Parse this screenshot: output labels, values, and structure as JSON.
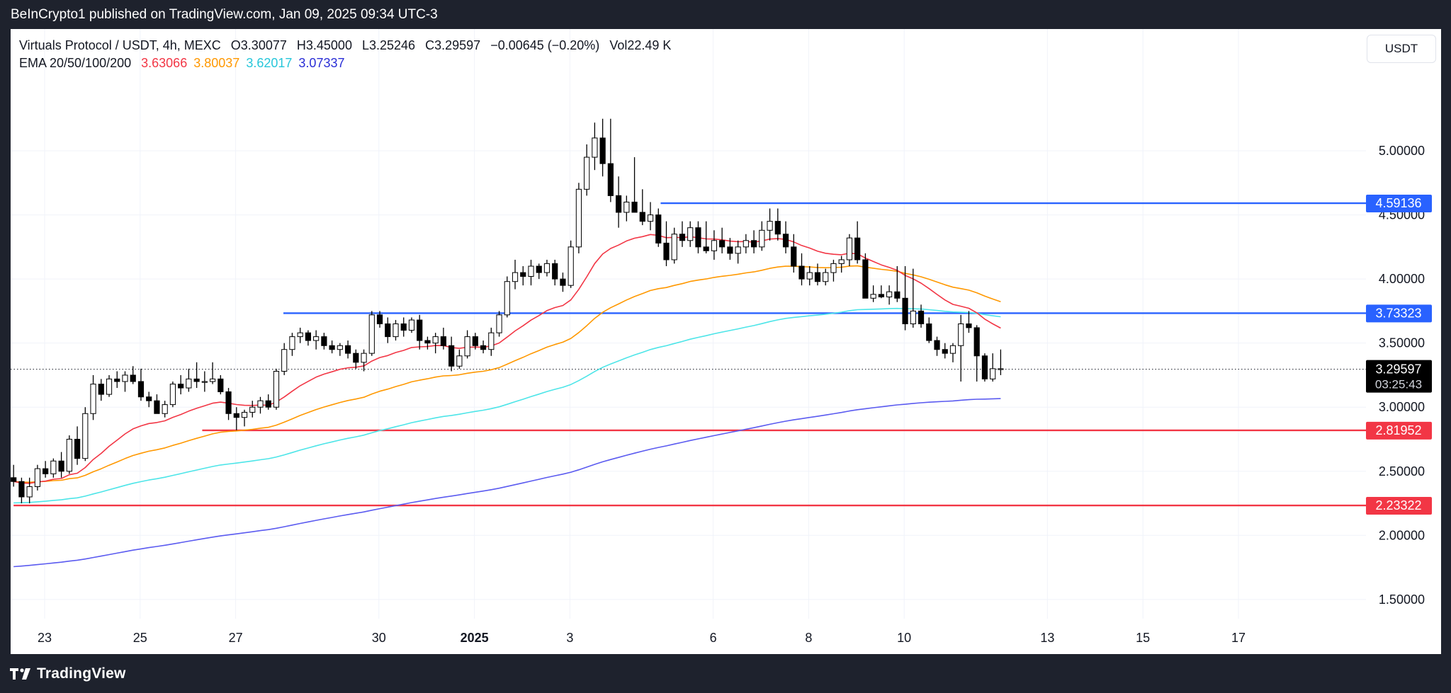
{
  "header": {
    "published": "BeInCrypto1 published on TradingView.com, Jan 09, 2025 09:34 UTC-3"
  },
  "legend": {
    "symbol": "Virtuals Protocol / USDT, 4h, MEXC",
    "ohlc": {
      "o_label": "O",
      "o": "3.30077",
      "h_label": "H",
      "h": "3.45000",
      "l_label": "L",
      "l": "3.25246",
      "c_label": "C",
      "c": "3.29597",
      "change": "−0.00645 (−0.20%)"
    },
    "vol_label": "Vol",
    "vol": "22.49 K",
    "ema_label": "EMA 20/50/100/200",
    "ema_values": [
      "3.63066",
      "3.80037",
      "3.62017",
      "3.07337"
    ]
  },
  "currency_button": "USDT",
  "footer": {
    "brand": "TradingView"
  },
  "colors": {
    "ema20": "#f23645",
    "ema50": "#ff9800",
    "ema100": "#4de5e8",
    "ema200": "#5b5bf0",
    "resistance": "#2962ff",
    "support": "#f23645",
    "bull": "#ffffff",
    "bear": "#000000",
    "panel": "#ffffff",
    "frame": "#1e222d"
  },
  "chart_data": {
    "type": "candlestick",
    "interval": "4h",
    "ylim": [
      1.35,
      5.95
    ],
    "y_ticks": [
      "5.00000",
      "4.50000",
      "4.00000",
      "3.50000",
      "3.00000",
      "2.50000",
      "2.00000",
      "1.50000"
    ],
    "x_ticks": [
      {
        "label": "23",
        "day": 23
      },
      {
        "label": "25",
        "day": 25
      },
      {
        "label": "27",
        "day": 27
      },
      {
        "label": "30",
        "day": 30
      },
      {
        "label": "2025",
        "day": 32,
        "bold": true
      },
      {
        "label": "3",
        "day": 34
      },
      {
        "label": "6",
        "day": 37
      },
      {
        "label": "8",
        "day": 39
      },
      {
        "label": "10",
        "day": 41
      },
      {
        "label": "13",
        "day": 44
      },
      {
        "label": "15",
        "day": 46
      },
      {
        "label": "17",
        "day": 48
      }
    ],
    "x_note": "day = days counted from Dec 1 2024 (Jan 1 = 32)",
    "levels": [
      {
        "value": 4.59136,
        "label": "4.59136",
        "kind": "resistance",
        "from_day": 35.9
      },
      {
        "value": 3.73323,
        "label": "3.73323",
        "kind": "resistance",
        "from_day": 28.0
      },
      {
        "value": 2.81952,
        "label": "2.81952",
        "kind": "support",
        "from_day": 26.3
      },
      {
        "value": 2.23322,
        "label": "2.23322",
        "kind": "support",
        "from_day": 22.35
      }
    ],
    "last_price": {
      "value": 3.29597,
      "label": "3.29597",
      "countdown": "03:25:43"
    },
    "start_day": 22.35,
    "candle_step_days": 0.1667,
    "candles": [
      [
        2.45,
        2.55,
        2.38,
        2.42
      ],
      [
        2.42,
        2.45,
        2.25,
        2.3
      ],
      [
        2.3,
        2.45,
        2.25,
        2.38
      ],
      [
        2.38,
        2.55,
        2.35,
        2.52
      ],
      [
        2.52,
        2.58,
        2.45,
        2.48
      ],
      [
        2.48,
        2.6,
        2.45,
        2.58
      ],
      [
        2.58,
        2.65,
        2.45,
        2.5
      ],
      [
        2.5,
        2.78,
        2.48,
        2.75
      ],
      [
        2.75,
        2.85,
        2.55,
        2.6
      ],
      [
        2.6,
        3.0,
        2.58,
        2.95
      ],
      [
        2.95,
        3.25,
        2.9,
        3.18
      ],
      [
        3.18,
        3.22,
        3.05,
        3.1
      ],
      [
        3.1,
        3.25,
        3.08,
        3.22
      ],
      [
        3.22,
        3.28,
        3.15,
        3.2
      ],
      [
        3.2,
        3.28,
        3.12,
        3.25
      ],
      [
        3.25,
        3.32,
        3.18,
        3.2
      ],
      [
        3.2,
        3.3,
        3.05,
        3.08
      ],
      [
        3.08,
        3.12,
        3.0,
        3.05
      ],
      [
        3.05,
        3.1,
        2.95,
        2.95
      ],
      [
        2.95,
        3.05,
        2.92,
        3.02
      ],
      [
        3.02,
        3.2,
        3.0,
        3.18
      ],
      [
        3.18,
        3.25,
        3.1,
        3.15
      ],
      [
        3.15,
        3.3,
        3.12,
        3.22
      ],
      [
        3.22,
        3.35,
        3.15,
        3.2
      ],
      [
        3.2,
        3.28,
        3.12,
        3.2
      ],
      [
        3.2,
        3.35,
        3.18,
        3.22
      ],
      [
        3.22,
        3.25,
        3.1,
        3.12
      ],
      [
        3.12,
        3.15,
        2.9,
        2.95
      ],
      [
        2.95,
        3.0,
        2.82,
        2.92
      ],
      [
        2.92,
        2.98,
        2.85,
        2.96
      ],
      [
        2.96,
        3.05,
        2.92,
        3.0
      ],
      [
        3.0,
        3.08,
        2.95,
        3.05
      ],
      [
        3.05,
        3.1,
        2.98,
        3.0
      ],
      [
        3.0,
        3.3,
        2.98,
        3.28
      ],
      [
        3.28,
        3.5,
        3.25,
        3.45
      ],
      [
        3.45,
        3.58,
        3.4,
        3.55
      ],
      [
        3.55,
        3.62,
        3.5,
        3.58
      ],
      [
        3.58,
        3.6,
        3.48,
        3.52
      ],
      [
        3.52,
        3.6,
        3.45,
        3.55
      ],
      [
        3.55,
        3.58,
        3.45,
        3.48
      ],
      [
        3.48,
        3.52,
        3.42,
        3.45
      ],
      [
        3.45,
        3.5,
        3.4,
        3.48
      ],
      [
        3.48,
        3.52,
        3.38,
        3.42
      ],
      [
        3.42,
        3.45,
        3.3,
        3.35
      ],
      [
        3.35,
        3.45,
        3.28,
        3.42
      ],
      [
        3.42,
        3.75,
        3.4,
        3.72
      ],
      [
        3.72,
        3.75,
        3.62,
        3.65
      ],
      [
        3.65,
        3.7,
        3.5,
        3.55
      ],
      [
        3.55,
        3.68,
        3.52,
        3.65
      ],
      [
        3.65,
        3.7,
        3.55,
        3.6
      ],
      [
        3.6,
        3.7,
        3.58,
        3.68
      ],
      [
        3.68,
        3.72,
        3.45,
        3.52
      ],
      [
        3.52,
        3.55,
        3.45,
        3.5
      ],
      [
        3.5,
        3.58,
        3.42,
        3.55
      ],
      [
        3.55,
        3.62,
        3.45,
        3.48
      ],
      [
        3.48,
        3.55,
        3.28,
        3.32
      ],
      [
        3.32,
        3.45,
        3.3,
        3.4
      ],
      [
        3.4,
        3.6,
        3.38,
        3.55
      ],
      [
        3.55,
        3.58,
        3.45,
        3.48
      ],
      [
        3.48,
        3.52,
        3.42,
        3.45
      ],
      [
        3.45,
        3.62,
        3.4,
        3.58
      ],
      [
        3.58,
        3.75,
        3.55,
        3.72
      ],
      [
        3.72,
        4.02,
        3.7,
        3.98
      ],
      [
        3.98,
        4.15,
        3.92,
        4.05
      ],
      [
        4.05,
        4.1,
        3.95,
        4.02
      ],
      [
        4.02,
        4.15,
        3.95,
        4.1
      ],
      [
        4.1,
        4.12,
        4.0,
        4.05
      ],
      [
        4.05,
        4.15,
        4.02,
        4.12
      ],
      [
        4.12,
        4.15,
        3.95,
        4.0
      ],
      [
        4.0,
        4.05,
        3.9,
        3.95
      ],
      [
        3.95,
        4.3,
        3.93,
        4.25
      ],
      [
        4.25,
        4.75,
        4.2,
        4.7
      ],
      [
        4.7,
        5.05,
        4.65,
        4.95
      ],
      [
        4.95,
        5.22,
        4.85,
        5.1
      ],
      [
        5.1,
        5.25,
        4.8,
        4.9
      ],
      [
        4.9,
        5.25,
        4.6,
        4.65
      ],
      [
        4.65,
        4.8,
        4.4,
        4.52
      ],
      [
        4.52,
        4.65,
        4.45,
        4.6
      ],
      [
        4.6,
        4.95,
        4.55,
        4.52
      ],
      [
        4.52,
        4.7,
        4.42,
        4.45
      ],
      [
        4.45,
        4.6,
        4.38,
        4.5
      ],
      [
        4.5,
        4.55,
        4.25,
        4.28
      ],
      [
        4.28,
        4.45,
        4.1,
        4.15
      ],
      [
        4.15,
        4.4,
        4.12,
        4.35
      ],
      [
        4.35,
        4.45,
        4.25,
        4.3
      ],
      [
        4.3,
        4.45,
        4.25,
        4.4
      ],
      [
        4.4,
        4.45,
        4.2,
        4.25
      ],
      [
        4.25,
        4.45,
        4.2,
        4.22
      ],
      [
        4.22,
        4.38,
        4.15,
        4.3
      ],
      [
        4.3,
        4.4,
        4.2,
        4.25
      ],
      [
        4.25,
        4.32,
        4.15,
        4.2
      ],
      [
        4.2,
        4.3,
        4.12,
        4.25
      ],
      [
        4.25,
        4.35,
        4.2,
        4.3
      ],
      [
        4.3,
        4.38,
        4.2,
        4.25
      ],
      [
        4.25,
        4.45,
        4.22,
        4.38
      ],
      [
        4.38,
        4.55,
        4.3,
        4.45
      ],
      [
        4.45,
        4.55,
        4.3,
        4.35
      ],
      [
        4.35,
        4.45,
        4.2,
        4.25
      ],
      [
        4.25,
        4.35,
        4.05,
        4.1
      ],
      [
        4.1,
        4.2,
        3.95,
        4.0
      ],
      [
        4.0,
        4.1,
        3.95,
        4.05
      ],
      [
        4.05,
        4.12,
        3.95,
        3.98
      ],
      [
        3.98,
        4.08,
        3.95,
        4.05
      ],
      [
        4.05,
        4.15,
        3.98,
        4.12
      ],
      [
        4.12,
        4.18,
        4.05,
        4.15
      ],
      [
        4.15,
        4.35,
        4.1,
        4.32
      ],
      [
        4.32,
        4.45,
        4.12,
        4.15
      ],
      [
        4.15,
        4.2,
        3.85,
        3.85
      ],
      [
        3.85,
        3.95,
        3.82,
        3.88
      ],
      [
        3.88,
        3.95,
        3.85,
        3.86
      ],
      [
        3.86,
        3.95,
        3.8,
        3.9
      ],
      [
        3.9,
        4.1,
        3.82,
        3.85
      ],
      [
        3.85,
        4.1,
        3.6,
        3.65
      ],
      [
        3.65,
        4.08,
        3.62,
        3.75
      ],
      [
        3.75,
        3.8,
        3.62,
        3.65
      ],
      [
        3.65,
        3.7,
        3.5,
        3.52
      ],
      [
        3.52,
        3.55,
        3.4,
        3.45
      ],
      [
        3.45,
        3.5,
        3.38,
        3.42
      ],
      [
        3.42,
        3.5,
        3.35,
        3.48
      ],
      [
        3.48,
        3.72,
        3.2,
        3.65
      ],
      [
        3.65,
        3.75,
        3.58,
        3.62
      ],
      [
        3.62,
        3.64,
        3.2,
        3.4
      ],
      [
        3.4,
        3.42,
        3.2,
        3.22
      ],
      [
        3.22,
        3.42,
        3.2,
        3.3
      ],
      [
        3.3,
        3.45,
        3.25,
        3.3
      ]
    ],
    "ema": [
      {
        "name": "EMA 20",
        "period": 20,
        "value": 3.63066
      },
      {
        "name": "EMA 50",
        "period": 50,
        "value": 3.80037
      },
      {
        "name": "EMA 100",
        "period": 100,
        "value": 3.62017
      },
      {
        "name": "EMA 200",
        "period": 200,
        "value": 3.07337
      }
    ],
    "ema100_seed": 2.25,
    "ema200_seed": 1.75,
    "ema200_alpha": 0.0085
  }
}
